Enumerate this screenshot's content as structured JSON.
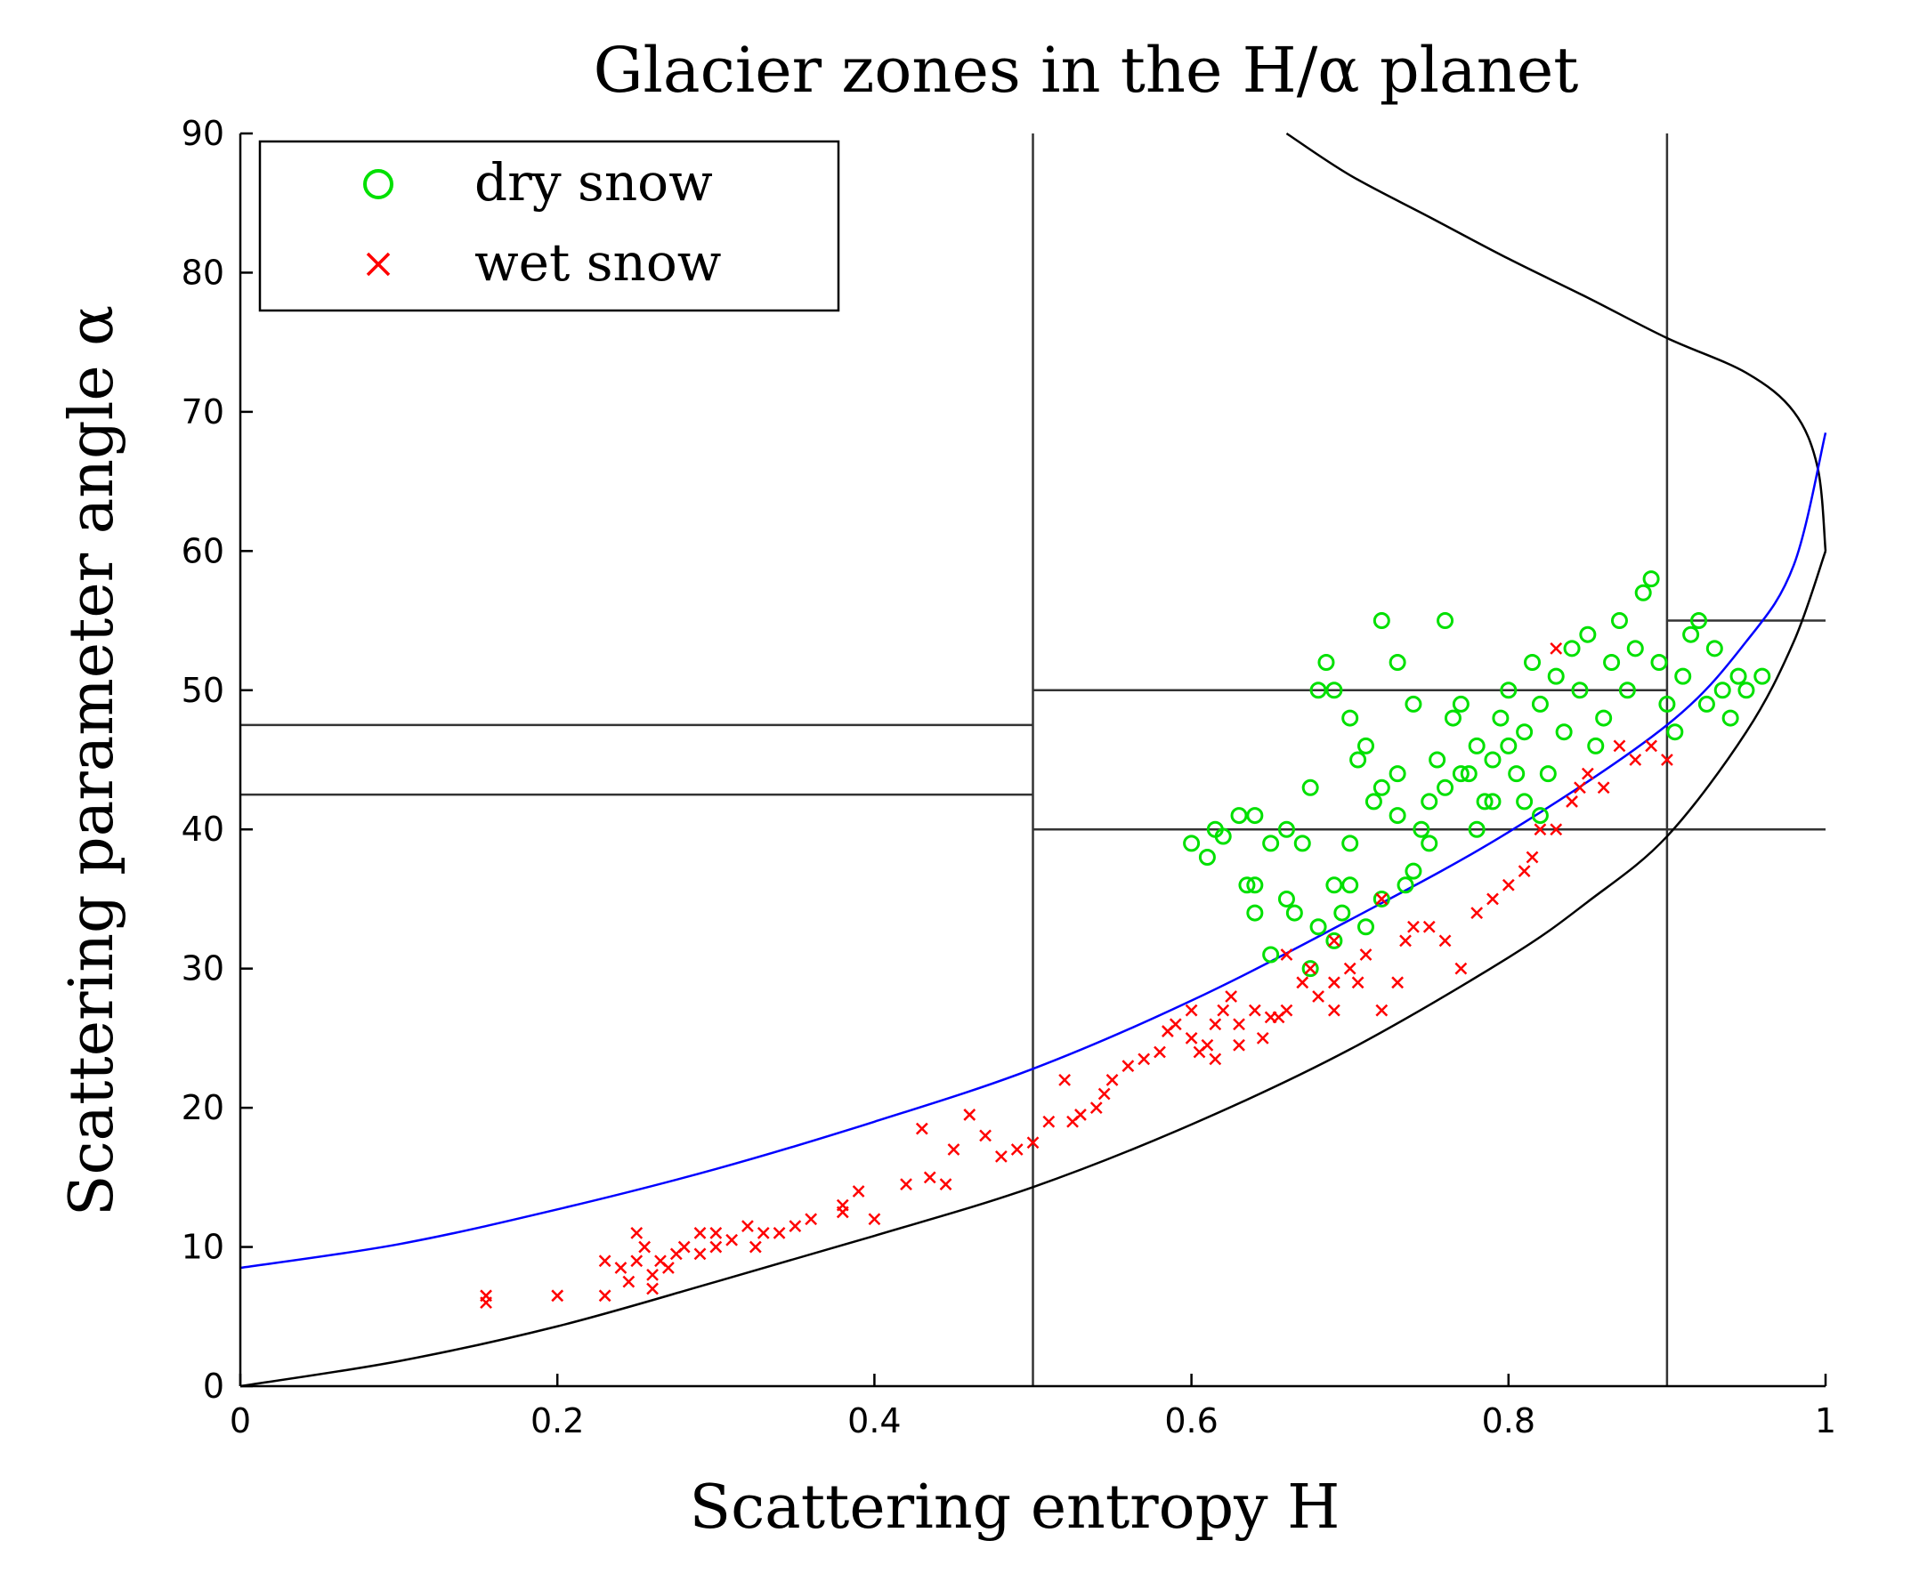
{
  "chart_data": {
    "type": "scatter",
    "title": "Glacier zones in the H/α planet",
    "xlabel": "Scattering entropy H",
    "ylabel": "Scattering parameter angle α",
    "xlim": [
      0,
      1
    ],
    "ylim": [
      0,
      90
    ],
    "x_ticks": [
      "0",
      "0.2",
      "0.4",
      "0.6",
      "0.8",
      "1"
    ],
    "y_ticks": [
      "0",
      "10",
      "20",
      "30",
      "40",
      "50",
      "60",
      "70",
      "80",
      "90"
    ],
    "legend": {
      "position": "top-left",
      "entries": [
        {
          "label": "dry snow",
          "marker": "circle",
          "color": "#00e000"
        },
        {
          "label": "wet snow",
          "marker": "x",
          "color": "#ff0000"
        }
      ]
    },
    "zone_boundaries": {
      "vertical": [
        0.5,
        0.9
      ],
      "horizontal": [
        {
          "y": 47.5,
          "x_range": [
            0,
            0.5
          ]
        },
        {
          "y": 42.5,
          "x_range": [
            0,
            0.5
          ]
        },
        {
          "y": 50,
          "x_range": [
            0.5,
            0.9
          ]
        },
        {
          "y": 40,
          "x_range": [
            0.5,
            1.0
          ]
        },
        {
          "y": 55,
          "x_range": [
            0.9,
            1.0
          ]
        }
      ]
    },
    "curves": [
      {
        "name": "feasible-boundary-lower",
        "color": "#000000",
        "points": [
          [
            0,
            0
          ],
          [
            0.1,
            1.8
          ],
          [
            0.2,
            4.3
          ],
          [
            0.3,
            7.5
          ],
          [
            0.4,
            10.8
          ],
          [
            0.5,
            14.3
          ],
          [
            0.6,
            18.8
          ],
          [
            0.7,
            24.2
          ],
          [
            0.8,
            30.8
          ],
          [
            0.85,
            34.8
          ],
          [
            0.9,
            39.5
          ],
          [
            0.95,
            47
          ],
          [
            0.98,
            53.5
          ],
          [
            1.0,
            60
          ]
        ]
      },
      {
        "name": "feasible-boundary-upper",
        "color": "#000000",
        "points": [
          [
            1.0,
            60
          ],
          [
            0.995,
            66
          ],
          [
            0.98,
            70
          ],
          [
            0.95,
            72.8
          ],
          [
            0.9,
            75.3
          ],
          [
            0.85,
            78.2
          ],
          [
            0.8,
            81
          ],
          [
            0.75,
            84
          ],
          [
            0.7,
            87
          ],
          [
            0.66,
            90
          ]
        ]
      },
      {
        "name": "fitted-curve",
        "color": "#0000ff",
        "points": [
          [
            0,
            8.5
          ],
          [
            0.1,
            10.2
          ],
          [
            0.2,
            12.7
          ],
          [
            0.3,
            15.6
          ],
          [
            0.4,
            19
          ],
          [
            0.5,
            22.8
          ],
          [
            0.6,
            27.7
          ],
          [
            0.7,
            33.5
          ],
          [
            0.8,
            39.8
          ],
          [
            0.9,
            47.5
          ],
          [
            0.95,
            53.5
          ],
          [
            0.98,
            59
          ],
          [
            1.0,
            68.5
          ]
        ]
      }
    ],
    "series": [
      {
        "name": "dry snow",
        "marker": "circle",
        "color": "#00e000",
        "points": [
          [
            0.6,
            39
          ],
          [
            0.61,
            38
          ],
          [
            0.615,
            40
          ],
          [
            0.62,
            39.5
          ],
          [
            0.63,
            41
          ],
          [
            0.64,
            41
          ],
          [
            0.65,
            39
          ],
          [
            0.66,
            40
          ],
          [
            0.635,
            36
          ],
          [
            0.64,
            36
          ],
          [
            0.64,
            34
          ],
          [
            0.65,
            31
          ],
          [
            0.66,
            35
          ],
          [
            0.67,
            39
          ],
          [
            0.675,
            43
          ],
          [
            0.68,
            33
          ],
          [
            0.69,
            32
          ],
          [
            0.695,
            34
          ],
          [
            0.7,
            36
          ],
          [
            0.7,
            39
          ],
          [
            0.71,
            33
          ],
          [
            0.72,
            35
          ],
          [
            0.72,
            43
          ],
          [
            0.73,
            44
          ],
          [
            0.735,
            36
          ],
          [
            0.74,
            37
          ],
          [
            0.745,
            40
          ],
          [
            0.75,
            42
          ],
          [
            0.755,
            45
          ],
          [
            0.76,
            43
          ],
          [
            0.765,
            48
          ],
          [
            0.77,
            49
          ],
          [
            0.775,
            44
          ],
          [
            0.78,
            46
          ],
          [
            0.785,
            42
          ],
          [
            0.79,
            45
          ],
          [
            0.795,
            48
          ],
          [
            0.8,
            50
          ],
          [
            0.805,
            44
          ],
          [
            0.81,
            47
          ],
          [
            0.815,
            52
          ],
          [
            0.82,
            49
          ],
          [
            0.825,
            44
          ],
          [
            0.83,
            51
          ],
          [
            0.835,
            47
          ],
          [
            0.84,
            53
          ],
          [
            0.845,
            50
          ],
          [
            0.85,
            54
          ],
          [
            0.855,
            46
          ],
          [
            0.86,
            48
          ],
          [
            0.865,
            52
          ],
          [
            0.87,
            55
          ],
          [
            0.875,
            50
          ],
          [
            0.88,
            53
          ],
          [
            0.885,
            57
          ],
          [
            0.89,
            58
          ],
          [
            0.895,
            52
          ],
          [
            0.9,
            49
          ],
          [
            0.905,
            47
          ],
          [
            0.91,
            51
          ],
          [
            0.915,
            54
          ],
          [
            0.92,
            55
          ],
          [
            0.925,
            49
          ],
          [
            0.93,
            53
          ],
          [
            0.935,
            50
          ],
          [
            0.94,
            48
          ],
          [
            0.945,
            51
          ],
          [
            0.95,
            50
          ],
          [
            0.96,
            51
          ],
          [
            0.68,
            50
          ],
          [
            0.7,
            48
          ],
          [
            0.71,
            46
          ],
          [
            0.72,
            55
          ],
          [
            0.73,
            52
          ],
          [
            0.74,
            49
          ],
          [
            0.76,
            55
          ],
          [
            0.77,
            44
          ],
          [
            0.78,
            40
          ],
          [
            0.79,
            42
          ],
          [
            0.8,
            46
          ],
          [
            0.81,
            42
          ],
          [
            0.82,
            41
          ],
          [
            0.75,
            39
          ],
          [
            0.73,
            41
          ],
          [
            0.715,
            42
          ],
          [
            0.705,
            45
          ],
          [
            0.69,
            50
          ],
          [
            0.685,
            52
          ],
          [
            0.675,
            30
          ],
          [
            0.665,
            34
          ],
          [
            0.69,
            36
          ]
        ]
      },
      {
        "name": "wet snow",
        "marker": "x",
        "color": "#ff0000",
        "points": [
          [
            0.155,
            6
          ],
          [
            0.155,
            6.5
          ],
          [
            0.2,
            6.5
          ],
          [
            0.23,
            6.5
          ],
          [
            0.23,
            9
          ],
          [
            0.24,
            8.5
          ],
          [
            0.245,
            7.5
          ],
          [
            0.25,
            9
          ],
          [
            0.25,
            11
          ],
          [
            0.255,
            10
          ],
          [
            0.26,
            8
          ],
          [
            0.26,
            7
          ],
          [
            0.265,
            9
          ],
          [
            0.27,
            8.5
          ],
          [
            0.275,
            9.5
          ],
          [
            0.28,
            10
          ],
          [
            0.29,
            9.5
          ],
          [
            0.29,
            11
          ],
          [
            0.3,
            11
          ],
          [
            0.3,
            10
          ],
          [
            0.31,
            10.5
          ],
          [
            0.32,
            11.5
          ],
          [
            0.325,
            10
          ],
          [
            0.33,
            11
          ],
          [
            0.34,
            11
          ],
          [
            0.35,
            11.5
          ],
          [
            0.36,
            12
          ],
          [
            0.38,
            13
          ],
          [
            0.38,
            12.5
          ],
          [
            0.39,
            14
          ],
          [
            0.4,
            12
          ],
          [
            0.42,
            14.5
          ],
          [
            0.43,
            18.5
          ],
          [
            0.435,
            15
          ],
          [
            0.445,
            14.5
          ],
          [
            0.45,
            17
          ],
          [
            0.46,
            19.5
          ],
          [
            0.47,
            18
          ],
          [
            0.48,
            16.5
          ],
          [
            0.49,
            17
          ],
          [
            0.5,
            17.5
          ],
          [
            0.51,
            19
          ],
          [
            0.52,
            22
          ],
          [
            0.525,
            19
          ],
          [
            0.53,
            19.5
          ],
          [
            0.54,
            20
          ],
          [
            0.545,
            21
          ],
          [
            0.55,
            22
          ],
          [
            0.56,
            23
          ],
          [
            0.57,
            23.5
          ],
          [
            0.58,
            24
          ],
          [
            0.585,
            25.5
          ],
          [
            0.59,
            26
          ],
          [
            0.6,
            27
          ],
          [
            0.605,
            24
          ],
          [
            0.61,
            24.5
          ],
          [
            0.615,
            26
          ],
          [
            0.62,
            27
          ],
          [
            0.625,
            28
          ],
          [
            0.63,
            26
          ],
          [
            0.64,
            27
          ],
          [
            0.645,
            25
          ],
          [
            0.65,
            26.5
          ],
          [
            0.66,
            27
          ],
          [
            0.67,
            29
          ],
          [
            0.675,
            30
          ],
          [
            0.68,
            28
          ],
          [
            0.69,
            29
          ],
          [
            0.7,
            30
          ],
          [
            0.705,
            29
          ],
          [
            0.71,
            31
          ],
          [
            0.72,
            27
          ],
          [
            0.73,
            29
          ],
          [
            0.735,
            32
          ],
          [
            0.74,
            33
          ],
          [
            0.75,
            33
          ],
          [
            0.76,
            32
          ],
          [
            0.77,
            30
          ],
          [
            0.78,
            34
          ],
          [
            0.79,
            35
          ],
          [
            0.8,
            36
          ],
          [
            0.81,
            37
          ],
          [
            0.815,
            38
          ],
          [
            0.82,
            40
          ],
          [
            0.83,
            40
          ],
          [
            0.84,
            42
          ],
          [
            0.845,
            43
          ],
          [
            0.85,
            44
          ],
          [
            0.86,
            43
          ],
          [
            0.87,
            46
          ],
          [
            0.88,
            45
          ],
          [
            0.89,
            46
          ],
          [
            0.9,
            45
          ],
          [
            0.83,
            53
          ],
          [
            0.66,
            31
          ],
          [
            0.69,
            32
          ],
          [
            0.72,
            35
          ],
          [
            0.6,
            25
          ],
          [
            0.615,
            23.5
          ],
          [
            0.63,
            24.5
          ],
          [
            0.655,
            26.5
          ],
          [
            0.69,
            27
          ]
        ]
      }
    ]
  }
}
